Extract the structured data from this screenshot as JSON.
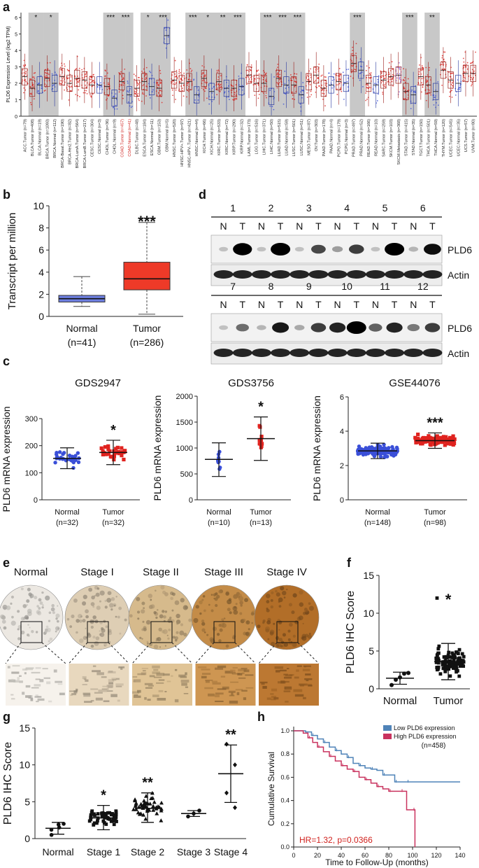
{
  "colors": {
    "normal_blue": "#3a4fd8",
    "tumor_red": "#e0231f",
    "sig_gray": "#c8c8c8",
    "highlight_red": "#d0201c",
    "kaplan_low": "#4f83b8",
    "kaplan_high": "#c9325e",
    "box_blue": "#6e7fe0",
    "box_red": "#ee3a28",
    "metastasis": "#8b5cd6"
  },
  "panels": {
    "a": "a",
    "b": "b",
    "c": "c",
    "d": "d",
    "e": "e",
    "f": "f",
    "g": "g",
    "h": "h"
  },
  "chart_data": [
    {
      "id": "a",
      "type": "scatter",
      "ylabel": "PLD6 Expression Level (log2 TPM)",
      "yticks": [
        0,
        1,
        2,
        3,
        4,
        5,
        6
      ],
      "ylim": [
        0,
        6.3
      ],
      "categories": [
        "ACC.Tumor (n=79)",
        "BLCA.Tumor (n=408)",
        "BLCA.Normal (n=19)",
        "BRCA.Tumor (n=1093)",
        "BRCA.Normal (n=112)",
        "BRCA-Basal.Tumor (n=190)",
        "BRCA-Her2.Tumor (n=82)",
        "BRCA-LumA.Tumor (n=564)",
        "BRCA-LumB.Tumor (n=217)",
        "CESC.Tumor (n=304)",
        "CESC.Normal (n=3)",
        "CHOL.Tumor (n=36)",
        "CHOL.Normal (n=9)",
        "COAD.Tumor (n=457)",
        "COAD.Normal (n=41)",
        "DLBC.Tumor (n=48)",
        "ESCA.Tumor (n=184)",
        "ESCA.Normal (n=11)",
        "GBM.Tumor (n=153)",
        "GBM.Normal (n=5)",
        "HNSC.Tumor (n=520)",
        "HNSC-HPV+.Tumor (n=97)",
        "HNSC-HPV-.Tumor (n=421)",
        "HNSC.Normal (n=44)",
        "KICH.Tumor (n=66)",
        "KICH.Normal (n=25)",
        "KIRC.Tumor (n=533)",
        "KIRC.Normal (n=72)",
        "KIRP.Tumor (n=290)",
        "KIRP.Normal (n=32)",
        "LAML.Tumor (n=173)",
        "LGG.Tumor (n=516)",
        "LIHC.Tumor (n=371)",
        "LIHC.Normal (n=50)",
        "LUAD.Tumor (n=515)",
        "LUAD.Normal (n=59)",
        "LUSC.Tumor (n=501)",
        "LUSC.Normal (n=51)",
        "MESO.Tumor (n=87)",
        "OV.Tumor (n=303)",
        "PAAD.Tumor (n=178)",
        "PAAD.Normal (n=4)",
        "PCPG.Tumor (n=179)",
        "PCPG.Normal (n=3)",
        "PRAD.Tumor (n=497)",
        "PRAD.Normal (n=52)",
        "READ.Tumor (n=166)",
        "READ.Normal (n=10)",
        "SARC.Tumor (n=259)",
        "SKCM.Tumor (n=103)",
        "SKCM.Metastasis (n=368)",
        "STAD.Tumor (n=415)",
        "STAD.Normal (n=35)",
        "TGCT.Tumor (n=150)",
        "THCA.Tumor (n=501)",
        "THCA.Normal (n=59)",
        "THYM.Tumor (n=120)",
        "UCEC.Tumor (n=545)",
        "UCEC.Normal (n=35)",
        "UCS.Tumor (n=57)",
        "UVM.Tumor (n=80)"
      ],
      "highlighted": [
        "COAD.Tumor (n=457)",
        "COAD.Normal (n=41)"
      ],
      "medians": [
        2.4,
        1.7,
        1.9,
        2.3,
        2.0,
        2.4,
        2.0,
        2.3,
        2.2,
        1.9,
        1.9,
        1.8,
        1.1,
        2.1,
        1.3,
        1.7,
        2.1,
        1.8,
        1.7,
        4.9,
        2.2,
        2.0,
        2.1,
        1.3,
        2.3,
        1.5,
        2.1,
        1.7,
        1.7,
        1.8,
        2.5,
        2.0,
        2.0,
        1.2,
        2.3,
        1.9,
        1.9,
        1.3,
        2.1,
        2.5,
        1.7,
        1.9,
        2.1,
        2.0,
        3.2,
        2.8,
        2.0,
        1.9,
        2.2,
        2.4,
        2.5,
        1.5,
        1.3,
        2.4,
        1.9,
        1.5,
        2.8,
        2.2,
        2.0,
        2.6,
        2.6
      ],
      "significance_marks": [
        {
          "category": "BLCA.Normal (n=19)",
          "label": "*"
        },
        {
          "category": "BRCA.Normal (n=112)",
          "label": "*"
        },
        {
          "category": "CHOL.Normal (n=9)",
          "label": "***"
        },
        {
          "category": "COAD.Normal (n=41)",
          "label": "***"
        },
        {
          "category": "ESCA.Normal (n=11)",
          "label": "*"
        },
        {
          "category": "GBM.Normal (n=5)",
          "label": "***"
        },
        {
          "category": "HNSC.Normal (n=44)",
          "label": "***"
        },
        {
          "category": "KICH.Normal (n=25)",
          "label": "*"
        },
        {
          "category": "KIRC.Normal (n=72)",
          "label": "**"
        },
        {
          "category": "KIRP.Normal (n=32)",
          "label": "***"
        },
        {
          "category": "LIHC.Normal (n=50)",
          "label": "***"
        },
        {
          "category": "LUAD.Normal (n=59)",
          "label": "***"
        },
        {
          "category": "LUSC.Normal (n=51)",
          "label": "***"
        },
        {
          "category": "PRAD.Normal (n=52)",
          "label": "***"
        },
        {
          "category": "STAD.Normal (n=35)",
          "label": "***"
        },
        {
          "category": "THCA.Normal (n=59)",
          "label": "**"
        }
      ]
    },
    {
      "id": "b",
      "type": "box",
      "ylabel": "Transcript per million",
      "ylim": [
        0,
        10
      ],
      "yticks": [
        0,
        2,
        4,
        6,
        8,
        10
      ],
      "categories": [
        "Normal",
        "Tumor"
      ],
      "counts": [
        "(n=41)",
        "(n=286)"
      ],
      "boxes": [
        {
          "min": 0.9,
          "q1": 1.3,
          "median": 1.6,
          "q3": 1.9,
          "max": 3.6
        },
        {
          "min": 0.2,
          "q1": 2.4,
          "median": 3.4,
          "q3": 4.9,
          "max": 8.5
        }
      ],
      "significance": "***"
    },
    {
      "id": "d",
      "type": "table",
      "rows": [
        {
          "lanes": [
            "1",
            "2",
            "3",
            "4",
            "5",
            "6"
          ],
          "tissue": [
            "N",
            "T",
            "N",
            "T",
            "N",
            "T",
            "N",
            "T",
            "N",
            "T",
            "N",
            "T"
          ],
          "pld6": [
            0.05,
            0.95,
            0.05,
            1.0,
            0.05,
            0.55,
            0.2,
            0.6,
            0.05,
            1.0,
            0.1,
            0.8
          ],
          "labels": [
            "PLD6",
            "Actin"
          ]
        },
        {
          "lanes": [
            "7",
            "8",
            "9",
            "10",
            "11",
            "12"
          ],
          "tissue": [
            "N",
            "T",
            "N",
            "T",
            "N",
            "T",
            "N",
            "T",
            "N",
            "T",
            "N",
            "T"
          ],
          "pld6": [
            0.05,
            0.4,
            0.1,
            0.75,
            0.15,
            0.6,
            0.7,
            1.0,
            0.45,
            0.7,
            0.35,
            0.6
          ],
          "labels": [
            "PLD6",
            "Actin"
          ]
        }
      ]
    },
    {
      "id": "c1",
      "type": "scatter",
      "title": "GDS2947",
      "ylabel": "PLD6 mRNA expression",
      "ylim": [
        0,
        300
      ],
      "yticks": [
        0,
        100,
        200,
        300
      ],
      "categories": [
        "Normal",
        "Tumor"
      ],
      "counts": [
        "(n=32)",
        "(n=32)"
      ],
      "mean": [
        153,
        175
      ],
      "sd_low": [
        115,
        130
      ],
      "sd_high": [
        192,
        220
      ],
      "significance": "*"
    },
    {
      "id": "c2",
      "type": "scatter",
      "title": "GDS3756",
      "ylabel": "PLD6 mRNA expression",
      "ylim": [
        0,
        2000
      ],
      "yticks": [
        0,
        500,
        1000,
        1500,
        2000
      ],
      "categories": [
        "Normal",
        "Tumor"
      ],
      "counts": [
        "(n=10)",
        "(n=13)"
      ],
      "mean": [
        780,
        1180
      ],
      "sd_low": [
        450,
        760
      ],
      "sd_high": [
        1100,
        1600
      ],
      "significance": "*"
    },
    {
      "id": "c3",
      "type": "scatter",
      "title": "GSE44076",
      "ylabel": "PLD6 mRNA expression",
      "ylim": [
        0,
        6
      ],
      "yticks": [
        0,
        2,
        4,
        6
      ],
      "categories": [
        "Normal",
        "Tumor"
      ],
      "counts": [
        "(n=148)",
        "(n=98)"
      ],
      "mean": [
        2.85,
        3.45
      ],
      "sd_low": [
        2.4,
        3.0
      ],
      "sd_high": [
        3.3,
        3.9
      ],
      "significance": "***"
    },
    {
      "id": "e",
      "type": "table",
      "labels": [
        "Normal",
        "Stage I",
        "Stage II",
        "Stage III",
        "Stage IV"
      ],
      "stain_intensity": [
        0.1,
        0.35,
        0.55,
        0.8,
        0.95
      ]
    },
    {
      "id": "f",
      "type": "scatter",
      "ylabel": "PLD6 IHC Score",
      "ylim": [
        0,
        15
      ],
      "yticks": [
        0,
        5,
        10,
        15
      ],
      "categories": [
        "Normal",
        "Tumor"
      ],
      "mean": [
        1.4,
        3.6
      ],
      "sd_low": [
        0.6,
        1.2
      ],
      "sd_high": [
        2.2,
        6.0
      ],
      "significance": "*"
    },
    {
      "id": "g",
      "type": "scatter",
      "ylabel": "PLD6 IHC Score",
      "ylim": [
        0,
        15
      ],
      "yticks": [
        0,
        5,
        10,
        15
      ],
      "categories": [
        "Normal",
        "Stage 1",
        "Stage 2",
        "Stage 3",
        "Stage 4"
      ],
      "mean": [
        1.4,
        2.8,
        4.1,
        3.4,
        8.8
      ],
      "sd_low": [
        0.6,
        1.2,
        2.2,
        3.0,
        4.9
      ],
      "sd_high": [
        2.2,
        4.5,
        6.2,
        3.8,
        12.7
      ],
      "significance": [
        "",
        "*",
        "**",
        "",
        "**"
      ]
    },
    {
      "id": "h",
      "type": "line",
      "ylabel": "Cumulative Survival",
      "xlabel": "Time to Follow-Up (months)",
      "xlim": [
        0,
        140
      ],
      "ylim": [
        0,
        1.0
      ],
      "xticks": [
        0,
        20,
        40,
        60,
        80,
        100,
        120,
        140
      ],
      "yticks": [
        0.0,
        0.2,
        0.4,
        0.6,
        0.8,
        1.0
      ],
      "legend": [
        "Low PLD6 expression",
        "High PLD6 expression"
      ],
      "n_label": "(n=458)",
      "annotation": "HR=1.32, p=0.0366",
      "series": [
        {
          "name": "Low PLD6 expression",
          "x": [
            0,
            10,
            15,
            20,
            25,
            30,
            35,
            40,
            45,
            50,
            55,
            60,
            65,
            70,
            75,
            80,
            85,
            90,
            95,
            140
          ],
          "y": [
            1.0,
            0.99,
            0.96,
            0.93,
            0.9,
            0.86,
            0.83,
            0.8,
            0.77,
            0.72,
            0.7,
            0.68,
            0.67,
            0.66,
            0.62,
            0.62,
            0.56,
            0.56,
            0.56,
            0.56
          ]
        },
        {
          "name": "High PLD6 expression",
          "x": [
            0,
            8,
            12,
            16,
            20,
            25,
            30,
            35,
            40,
            45,
            50,
            55,
            60,
            65,
            70,
            75,
            80,
            85,
            90,
            95,
            100,
            102
          ],
          "y": [
            1.0,
            0.98,
            0.94,
            0.9,
            0.86,
            0.82,
            0.78,
            0.74,
            0.7,
            0.67,
            0.65,
            0.6,
            0.58,
            0.55,
            0.52,
            0.5,
            0.48,
            0.48,
            0.48,
            0.32,
            0.32,
            0.0
          ]
        }
      ]
    }
  ]
}
